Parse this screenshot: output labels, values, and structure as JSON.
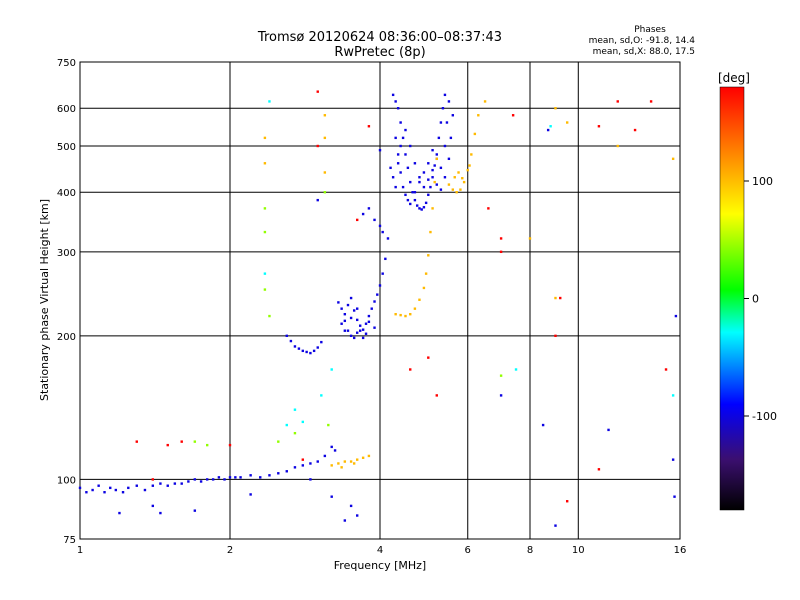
{
  "chart_data": {
    "type": "scatter",
    "title": "Tromsø 20120624 08:36:00–08:37:43",
    "subtitle": "RwPretec (8p)",
    "stats": {
      "heading": "Phases",
      "line1": "mean, sd,O: -91.8, 14.4",
      "line2": "mean, sd,X:  88.0, 17.5"
    },
    "xlabel": "Frequency [MHz]",
    "ylabel": "Stationary phase Virtual Height [km]",
    "xscale": "log",
    "yscale": "log",
    "xlim": [
      1,
      16
    ],
    "ylim": [
      75,
      750
    ],
    "xticks": [
      1,
      2,
      4,
      6,
      8,
      10,
      16
    ],
    "xtick_labels": [
      "1",
      "2",
      "4",
      "6",
      "8",
      "10",
      "16"
    ],
    "yticks": [
      75,
      100,
      200,
      300,
      400,
      500,
      600,
      750
    ],
    "ytick_labels": [
      "75",
      "100",
      "200",
      "300",
      "400",
      "500",
      "600",
      "750"
    ],
    "grid": true,
    "colorbar": {
      "label": "[deg]",
      "range": [
        -180,
        180
      ],
      "ticks": [
        100,
        0,
        -100
      ],
      "tick_labels": [
        "100",
        "0",
        "-100"
      ]
    },
    "series": [
      {
        "phase": -100,
        "points": [
          [
            1.0,
            96
          ],
          [
            1.03,
            94
          ],
          [
            1.06,
            95
          ],
          [
            1.09,
            97
          ],
          [
            1.12,
            94
          ],
          [
            1.15,
            96
          ],
          [
            1.18,
            95
          ],
          [
            1.22,
            94
          ],
          [
            1.25,
            96
          ],
          [
            1.3,
            97
          ],
          [
            1.35,
            95
          ],
          [
            1.4,
            97
          ],
          [
            1.45,
            98
          ],
          [
            1.5,
            97
          ],
          [
            1.55,
            98
          ],
          [
            1.6,
            98
          ],
          [
            1.65,
            99
          ],
          [
            1.7,
            100
          ],
          [
            1.75,
            99
          ],
          [
            1.8,
            100
          ],
          [
            1.85,
            100
          ],
          [
            1.9,
            101
          ],
          [
            1.95,
            100
          ],
          [
            2.0,
            101
          ],
          [
            2.05,
            101
          ],
          [
            2.1,
            101
          ],
          [
            2.2,
            102
          ],
          [
            2.3,
            101
          ],
          [
            2.4,
            102
          ],
          [
            2.5,
            103
          ],
          [
            2.6,
            104
          ],
          [
            2.7,
            106
          ],
          [
            2.8,
            107
          ],
          [
            2.9,
            108
          ],
          [
            3.0,
            109
          ],
          [
            3.1,
            112
          ],
          [
            3.2,
            117
          ],
          [
            3.25,
            115
          ],
          [
            2.7,
            190
          ],
          [
            2.75,
            188
          ],
          [
            2.8,
            186
          ],
          [
            2.85,
            185
          ],
          [
            2.9,
            184
          ],
          [
            2.95,
            186
          ],
          [
            3.0,
            189
          ],
          [
            3.05,
            194
          ],
          [
            2.6,
            200
          ],
          [
            2.65,
            195
          ],
          [
            3.3,
            235
          ],
          [
            3.35,
            228
          ],
          [
            3.4,
            215
          ],
          [
            3.45,
            205
          ],
          [
            3.5,
            200
          ],
          [
            3.55,
            198
          ],
          [
            3.6,
            203
          ],
          [
            3.65,
            210
          ],
          [
            3.7,
            206
          ],
          [
            3.75,
            212
          ],
          [
            3.8,
            220
          ],
          [
            3.85,
            228
          ],
          [
            3.9,
            236
          ],
          [
            3.95,
            244
          ],
          [
            4.0,
            255
          ],
          [
            4.05,
            270
          ],
          [
            4.1,
            290
          ],
          [
            4.15,
            320
          ],
          [
            3.35,
            212
          ],
          [
            3.4,
            222
          ],
          [
            3.45,
            232
          ],
          [
            3.5,
            240
          ],
          [
            3.55,
            226
          ],
          [
            3.6,
            216
          ],
          [
            3.65,
            205
          ],
          [
            3.7,
            198
          ],
          [
            3.75,
            202
          ],
          [
            3.8,
            214
          ],
          [
            3.9,
            208
          ],
          [
            3.4,
            205
          ],
          [
            3.5,
            218
          ],
          [
            3.6,
            228
          ],
          [
            3.7,
            360
          ],
          [
            3.8,
            370
          ],
          [
            3.9,
            350
          ],
          [
            4.0,
            340
          ],
          [
            4.05,
            330
          ],
          [
            4.25,
            640
          ],
          [
            4.3,
            620
          ],
          [
            4.35,
            600
          ],
          [
            4.4,
            560
          ],
          [
            4.45,
            520
          ],
          [
            4.5,
            480
          ],
          [
            4.55,
            450
          ],
          [
            4.6,
            420
          ],
          [
            4.65,
            400
          ],
          [
            4.7,
            385
          ],
          [
            4.75,
            375
          ],
          [
            4.8,
            370
          ],
          [
            4.85,
            368
          ],
          [
            4.9,
            372
          ],
          [
            4.95,
            380
          ],
          [
            5.0,
            395
          ],
          [
            5.05,
            410
          ],
          [
            5.1,
            430
          ],
          [
            5.15,
            455
          ],
          [
            5.2,
            480
          ],
          [
            5.25,
            520
          ],
          [
            5.3,
            560
          ],
          [
            5.35,
            600
          ],
          [
            5.4,
            640
          ],
          [
            4.3,
            520
          ],
          [
            4.35,
            480
          ],
          [
            4.4,
            440
          ],
          [
            4.45,
            410
          ],
          [
            4.5,
            395
          ],
          [
            4.55,
            385
          ],
          [
            4.6,
            378
          ],
          [
            4.7,
            400
          ],
          [
            4.8,
            420
          ],
          [
            4.9,
            440
          ],
          [
            5.0,
            460
          ],
          [
            5.1,
            490
          ],
          [
            5.2,
            470
          ],
          [
            5.3,
            450
          ],
          [
            5.4,
            500
          ],
          [
            5.45,
            560
          ],
          [
            5.5,
            620
          ],
          [
            4.2,
            450
          ],
          [
            4.25,
            430
          ],
          [
            4.3,
            410
          ],
          [
            4.35,
            460
          ],
          [
            4.4,
            500
          ],
          [
            4.5,
            540
          ],
          [
            4.6,
            500
          ],
          [
            4.7,
            460
          ],
          [
            4.8,
            430
          ],
          [
            4.9,
            410
          ],
          [
            5.0,
            425
          ],
          [
            5.1,
            445
          ],
          [
            5.2,
            415
          ],
          [
            5.3,
            405
          ],
          [
            5.4,
            430
          ],
          [
            5.5,
            470
          ],
          [
            5.55,
            520
          ],
          [
            5.6,
            580
          ],
          [
            2.9,
            100
          ],
          [
            1.2,
            85
          ],
          [
            1.4,
            88
          ],
          [
            1.45,
            85
          ],
          [
            1.7,
            86
          ],
          [
            2.2,
            93
          ],
          [
            3.2,
            92
          ],
          [
            3.4,
            82
          ],
          [
            3.5,
            88
          ],
          [
            3.6,
            84
          ],
          [
            9.0,
            80
          ],
          [
            15.5,
            110
          ],
          [
            15.6,
            92
          ],
          [
            15.7,
            220
          ],
          [
            11.5,
            127
          ],
          [
            8.5,
            130
          ],
          [
            7.0,
            150
          ],
          [
            8.7,
            540
          ],
          [
            4.0,
            490
          ],
          [
            3.0,
            385
          ]
        ]
      },
      {
        "phase": 100,
        "points": [
          [
            3.2,
            107
          ],
          [
            3.3,
            108
          ],
          [
            3.4,
            109
          ],
          [
            3.5,
            109
          ],
          [
            3.6,
            110
          ],
          [
            3.7,
            111
          ],
          [
            3.8,
            112
          ],
          [
            3.35,
            106
          ],
          [
            3.55,
            108
          ],
          [
            4.3,
            222
          ],
          [
            4.4,
            221
          ],
          [
            4.5,
            220
          ],
          [
            4.6,
            222
          ],
          [
            4.7,
            228
          ],
          [
            4.8,
            238
          ],
          [
            4.9,
            252
          ],
          [
            4.95,
            270
          ],
          [
            5.0,
            295
          ],
          [
            5.05,
            330
          ],
          [
            5.1,
            370
          ],
          [
            5.15,
            420
          ],
          [
            5.2,
            470
          ],
          [
            5.5,
            415
          ],
          [
            5.6,
            405
          ],
          [
            5.7,
            400
          ],
          [
            5.8,
            405
          ],
          [
            5.9,
            420
          ],
          [
            6.0,
            445
          ],
          [
            6.1,
            480
          ],
          [
            6.2,
            530
          ],
          [
            6.3,
            580
          ],
          [
            5.65,
            430
          ],
          [
            5.75,
            440
          ],
          [
            5.85,
            428
          ],
          [
            6.05,
            455
          ],
          [
            3.1,
            440
          ],
          [
            3.1,
            520
          ],
          [
            3.1,
            580
          ],
          [
            2.35,
            520
          ],
          [
            2.35,
            460
          ],
          [
            9.0,
            600
          ],
          [
            9.5,
            560
          ],
          [
            12.0,
            500
          ],
          [
            15.5,
            470
          ],
          [
            8.0,
            320
          ],
          [
            9.0,
            240
          ],
          [
            6.5,
            620
          ]
        ]
      },
      {
        "phase": 180,
        "points": [
          [
            12.0,
            620
          ],
          [
            14.0,
            620
          ],
          [
            6.6,
            370
          ],
          [
            9.2,
            240
          ],
          [
            7.4,
            580
          ],
          [
            7.0,
            300
          ],
          [
            3.0,
            650
          ],
          [
            3.0,
            500
          ],
          [
            11.0,
            550
          ],
          [
            13.0,
            540
          ],
          [
            1.3,
            120
          ],
          [
            1.5,
            118
          ],
          [
            1.6,
            120
          ],
          [
            2.0,
            118
          ],
          [
            2.8,
            110
          ],
          [
            1.4,
            100
          ],
          [
            3.6,
            350
          ],
          [
            7.0,
            320
          ],
          [
            3.8,
            550
          ],
          [
            9.5,
            90
          ],
          [
            11.0,
            105
          ],
          [
            15.0,
            170
          ],
          [
            5.2,
            150
          ],
          [
            9.0,
            200
          ],
          [
            4.6,
            170
          ],
          [
            5.0,
            180
          ]
        ]
      },
      {
        "phase": 40,
        "points": [
          [
            2.35,
            370
          ],
          [
            2.35,
            330
          ],
          [
            2.35,
            250
          ],
          [
            2.4,
            220
          ],
          [
            1.7,
            120
          ],
          [
            1.8,
            118
          ],
          [
            2.5,
            120
          ],
          [
            2.7,
            125
          ],
          [
            3.1,
            400
          ],
          [
            3.15,
            130
          ],
          [
            7.0,
            165
          ]
        ]
      },
      {
        "phase": -30,
        "points": [
          [
            2.4,
            620
          ],
          [
            2.35,
            270
          ],
          [
            2.6,
            130
          ],
          [
            2.7,
            140
          ],
          [
            2.8,
            132
          ],
          [
            3.05,
            150
          ],
          [
            3.2,
            170
          ],
          [
            8.8,
            550
          ],
          [
            7.5,
            170
          ],
          [
            15.5,
            150
          ]
        ]
      }
    ]
  }
}
